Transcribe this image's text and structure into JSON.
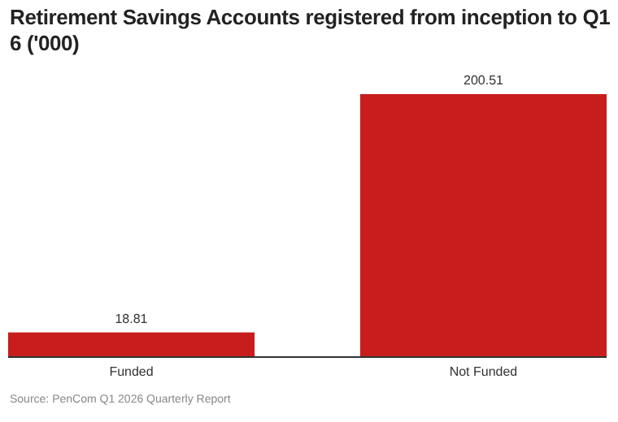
{
  "chart_data": {
    "type": "bar",
    "title": "Retirement Savings Accounts registered from inception to Q1\n6 ('000)",
    "categories": [
      "Funded",
      "Not Funded"
    ],
    "values": [
      18.81,
      200.51
    ],
    "color": "#c71e1d",
    "data_labels": true,
    "annotations": [
      "Source: PenCom Q1 2026 Quarterly Report"
    ]
  }
}
